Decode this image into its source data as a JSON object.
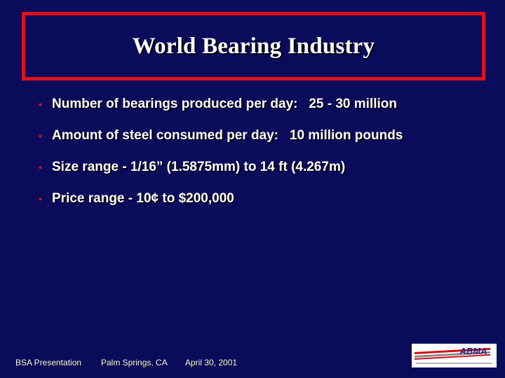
{
  "slide": {
    "title": "World Bearing Industry",
    "bullets": [
      {
        "text": "Number of bearings produced per day:   25 - 30 million"
      },
      {
        "text": "Amount of steel consumed per day:   10 million pounds"
      },
      {
        "text": "Size range - 1/16” (1.5875mm) to 14 ft (4.267m)"
      },
      {
        "text": "Price range - 10¢ to $200,000"
      }
    ],
    "bullet_symbol": "•"
  },
  "footer": {
    "presentation": "BSA Presentation",
    "location": "Palm Springs, CA",
    "date": "April 30, 2001"
  },
  "logo": {
    "text": "ABMA",
    "icon": "abma-logo",
    "colors": {
      "stripe_red": "#d0101c",
      "stripe_gray": "#8c8c8c",
      "text_blue": "#1a237e"
    }
  },
  "colors": {
    "background": "#0b0b5c",
    "title_border": "#e0101c",
    "text": "#ffffff",
    "bullet": "#e0101c"
  }
}
